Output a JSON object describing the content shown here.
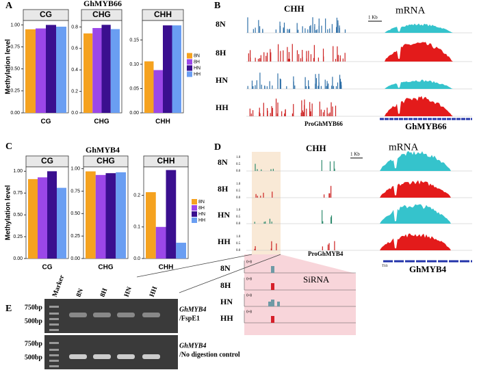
{
  "panel_labels": [
    "A",
    "B",
    "C",
    "D",
    "E"
  ],
  "chart_data": [
    {
      "type": "bar",
      "title": "GhMYB66",
      "ylabel": "Methylation level",
      "strip": "CG",
      "xlabel": "CG",
      "ylim": [
        0,
        1.05
      ],
      "yticks": [
        {
          "value": 0,
          "label": "0.00"
        },
        {
          "value": 0.25,
          "label": "0.25"
        },
        {
          "value": 0.5,
          "label": "0.50"
        },
        {
          "value": 0.75,
          "label": "0.75"
        },
        {
          "value": 1,
          "label": "1.00"
        }
      ],
      "series": [
        {
          "color": "#f5a21f",
          "values": [
            0.95
          ]
        },
        {
          "color": "#9b47e8",
          "values": [
            0.96
          ]
        },
        {
          "color": "#3a0f8f",
          "values": [
            1.0
          ]
        },
        {
          "color": "#6a9ef2",
          "values": [
            0.98
          ]
        }
      ]
    },
    {
      "type": "bar",
      "strip": "CHG",
      "xlabel": "CHG",
      "ylim": [
        0,
        0.86
      ],
      "yticks": [
        {
          "value": 0,
          "label": "0.0"
        },
        0.2,
        0.4,
        0.6,
        0.8
      ],
      "series": [
        {
          "color": "#f5a21f",
          "values": [
            0.74
          ]
        },
        {
          "color": "#9b47e8",
          "values": [
            0.79
          ]
        },
        {
          "color": "#3a0f8f",
          "values": [
            0.82
          ]
        },
        {
          "color": "#6a9ef2",
          "values": [
            0.78
          ]
        }
      ]
    },
    {
      "type": "bar",
      "strip": "CHH",
      "xlabel": "CHH",
      "legend": "right",
      "ylim": [
        0,
        0.19
      ],
      "yticks": [
        {
          "value": 0,
          "label": "0.00"
        },
        0.05,
        {
          "value": 0.1,
          "label": "0.10"
        },
        0.15
      ],
      "series": [
        {
          "name": "8N",
          "color": "#f5a21f",
          "values": [
            0.106
          ]
        },
        {
          "name": "8H",
          "color": "#9b47e8",
          "values": [
            0.088
          ]
        },
        {
          "name": "HN",
          "color": "#3a0f8f",
          "values": [
            0.18
          ]
        },
        {
          "name": "HH",
          "color": "#6a9ef2",
          "values": [
            0.18
          ]
        }
      ]
    },
    {
      "type": "bar",
      "title": "GhMYB4",
      "ylabel": "Methylation level",
      "strip": "CG",
      "xlabel": "CG",
      "ylim": [
        0,
        1.05
      ],
      "yticks": [
        {
          "value": 0,
          "label": "0.00"
        },
        {
          "value": 0.25,
          "label": "0.25"
        },
        {
          "value": 0.5,
          "label": "0.50"
        },
        {
          "value": 0.75,
          "label": "0.75"
        },
        {
          "value": 1,
          "label": "1.00"
        }
      ],
      "series": [
        {
          "color": "#f5a21f",
          "values": [
            0.91
          ]
        },
        {
          "color": "#9b47e8",
          "values": [
            0.93
          ]
        },
        {
          "color": "#3a0f8f",
          "values": [
            1.0
          ]
        },
        {
          "color": "#6a9ef2",
          "values": [
            0.81
          ]
        }
      ]
    },
    {
      "type": "bar",
      "strip": "CHG",
      "xlabel": "CHG",
      "ylim": [
        0,
        1.02
      ],
      "yticks": [
        {
          "value": 0,
          "label": "0.00"
        },
        {
          "value": 0.25,
          "label": "0.25"
        },
        {
          "value": 0.5,
          "label": "0.50"
        },
        {
          "value": 0.75,
          "label": "0.75"
        },
        {
          "value": 1,
          "label": "1.00"
        }
      ],
      "series": [
        {
          "color": "#f5a21f",
          "values": [
            0.97
          ]
        },
        {
          "color": "#9b47e8",
          "values": [
            0.93
          ]
        },
        {
          "color": "#3a0f8f",
          "values": [
            0.95
          ]
        },
        {
          "color": "#6a9ef2",
          "values": [
            0.96
          ]
        }
      ]
    },
    {
      "type": "bar",
      "strip": "CHH",
      "xlabel": "CHH",
      "legend": "right",
      "ylim": [
        0,
        0.29
      ],
      "yticks": [
        {
          "value": 0,
          "label": "0.0"
        },
        0.1,
        0.2
      ],
      "series": [
        {
          "name": "8N",
          "color": "#f5a21f",
          "values": [
            0.21
          ]
        },
        {
          "name": "8H",
          "color": "#9b47e8",
          "values": [
            0.1
          ]
        },
        {
          "name": "HN",
          "color": "#3a0f8f",
          "values": [
            0.28
          ]
        },
        {
          "name": "HH",
          "color": "#6a9ef2",
          "values": [
            0.05
          ]
        }
      ]
    }
  ],
  "track_b": {
    "context": "CHH",
    "scale": "1 Kb",
    "rna": "mRNA",
    "rows": [
      "8N",
      "8H",
      "HN",
      "HH"
    ],
    "promoter": "ProGhMYB66",
    "gene": "GhMYB66"
  },
  "track_d": {
    "context": "CHH",
    "scale": "1 Kb",
    "rna": "mRNA",
    "rows": [
      "8N",
      "8H",
      "HN",
      "HH"
    ],
    "axis_labels": [
      "1.0",
      "0.5",
      "0.0"
    ],
    "promoter": "ProGhMYB4",
    "tss": "TSS",
    "gene": "GhMYB4",
    "sirna": {
      "title": "SiRNA",
      "range": "0-8",
      "rows": [
        "8N",
        "8H",
        "HN",
        "HH"
      ]
    }
  },
  "gel": {
    "lanes": [
      "Marker",
      "8N",
      "8H",
      "HN",
      "HH"
    ],
    "top": {
      "sizes": [
        "750bp",
        "500bp"
      ],
      "gene": "GhMYB4",
      "note": "/FspE1"
    },
    "bottom": {
      "sizes": [
        "750bp",
        "500bp"
      ],
      "gene": "GhMYB4",
      "note": "/No digestion control"
    }
  }
}
